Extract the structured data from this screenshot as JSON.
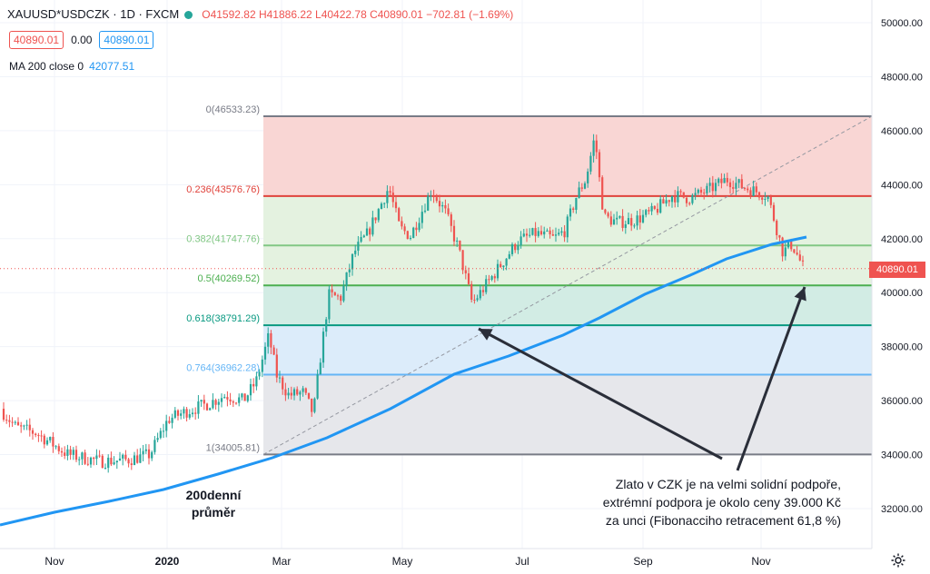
{
  "header": {
    "symbol": "XAUUSD*USDCZK · 1D · FXCM",
    "ohlc": "O41592.82 H41886.22 L40422.78 C40890.01 −702.81 (−1.69%)",
    "sell_price": "40890.01",
    "spread": "0.00",
    "buy_price": "40890.01",
    "indicator_label": "MA 200 close 0",
    "indicator_value": "42077.51"
  },
  "price_axis": {
    "ticks": [
      "50000.00",
      "48000.00",
      "46000.00",
      "44000.00",
      "42000.00",
      "40000.00",
      "38000.00",
      "36000.00",
      "34000.00",
      "32000.00"
    ],
    "last_price_label": "40890.01",
    "last_price_color": "#ef5350"
  },
  "time_axis": {
    "ticks": [
      "Nov",
      "2020",
      "Mar",
      "May",
      "Jul",
      "Sep",
      "Nov"
    ]
  },
  "fibonacci": {
    "levels": [
      {
        "label": "0(46533.23)",
        "value": 46533.23,
        "color": "#787b86"
      },
      {
        "label": "0.236(43576.76)",
        "value": 43576.76,
        "color": "#e0433c"
      },
      {
        "label": "0.382(41747.76)",
        "value": 41747.76,
        "color": "#81c784"
      },
      {
        "label": "0.5(40269.52)",
        "value": 40269.52,
        "color": "#4caf50"
      },
      {
        "label": "0.618(38791.29)",
        "value": 38791.29,
        "color": "#089981"
      },
      {
        "label": "0.764(36962.28)",
        "value": 36962.28,
        "color": "#64b5f6"
      },
      {
        "label": "1(34005.81)",
        "value": 34005.81,
        "color": "#787b86"
      }
    ]
  },
  "annotations": {
    "ma_note": [
      "200denní",
      "průměr"
    ],
    "main_note": [
      "Zlato v CZK je na velmi solidní podpoře,",
      "extrémní podpora je okolo ceny 39.000 Kč",
      "za unci (Fibonacciho retracement 61,8 %)"
    ]
  },
  "colors": {
    "up": "#26a69a",
    "down": "#ef5350",
    "ma": "#2196f3",
    "arrow": "#2a2e39"
  }
}
